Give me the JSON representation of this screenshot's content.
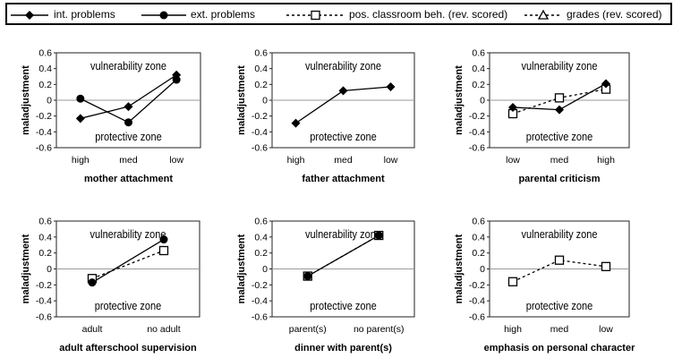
{
  "legend": {
    "items": [
      {
        "key": "int",
        "label": "int. problems",
        "marker": "diamond",
        "line": "solid"
      },
      {
        "key": "ext",
        "label": "ext. problems",
        "marker": "circle",
        "line": "solid"
      },
      {
        "key": "pcb",
        "label": "pos. classroom beh. (rev. scored)",
        "marker": "square",
        "line": "dashed"
      },
      {
        "key": "grades",
        "label": "grades (rev. scored)",
        "marker": "triangle",
        "line": "dashed"
      }
    ]
  },
  "chart_data": [
    {
      "type": "line",
      "xlabel": "mother attachment",
      "ylabel": "maladjustment",
      "ylim": [
        -0.6,
        0.6
      ],
      "yticks": [
        "0.6",
        "0.4",
        "0.2",
        "0",
        "-0.2",
        "-0.4",
        "-0.6"
      ],
      "categories": [
        "high",
        "med",
        "low"
      ],
      "upper_zone_label": "vulnerability zone",
      "lower_zone_label": "protective zone",
      "series": [
        {
          "name": "int. problems",
          "key": "int",
          "values": [
            -0.23,
            -0.08,
            0.32
          ]
        },
        {
          "name": "ext. problems",
          "key": "ext",
          "values": [
            0.02,
            -0.28,
            0.26
          ]
        }
      ]
    },
    {
      "type": "line",
      "xlabel": "father attachment",
      "ylabel": "maladjustment",
      "ylim": [
        -0.6,
        0.6
      ],
      "yticks": [
        "0.6",
        "0.4",
        "0.2",
        "0",
        "-0.2",
        "-0.4",
        "-0.6"
      ],
      "categories": [
        "high",
        "med",
        "low"
      ],
      "upper_zone_label": "vulnerability zone",
      "lower_zone_label": "protective zone",
      "series": [
        {
          "name": "int. problems",
          "key": "int",
          "values": [
            -0.29,
            0.12,
            0.17
          ]
        }
      ]
    },
    {
      "type": "line",
      "xlabel": "parental criticism",
      "ylabel": "maladjustment",
      "ylim": [
        -0.6,
        0.6
      ],
      "yticks": [
        "0.6",
        "0.4",
        "0.2",
        "0",
        "-0.2",
        "-0.4",
        "-0.6"
      ],
      "categories": [
        "low",
        "med",
        "high"
      ],
      "upper_zone_label": "vulnerability zone",
      "lower_zone_label": "protective zone",
      "series": [
        {
          "name": "int. problems",
          "key": "int",
          "values": [
            -0.09,
            -0.12,
            0.21
          ]
        },
        {
          "name": "pos. classroom beh. (rev. scored)",
          "key": "pcb",
          "values": [
            -0.17,
            0.03,
            0.14
          ]
        }
      ]
    },
    {
      "type": "line",
      "xlabel": "adult afterschool supervision",
      "ylabel": "maladjustment",
      "ylim": [
        -0.6,
        0.6
      ],
      "yticks": [
        "0.6",
        "0.4",
        "0.2",
        "0",
        "-0.2",
        "-0.4",
        "-0.6"
      ],
      "categories": [
        "adult",
        "no adult"
      ],
      "upper_zone_label": "vulnerability zone",
      "lower_zone_label": "protective zone",
      "series": [
        {
          "name": "ext. problems",
          "key": "ext",
          "values": [
            -0.17,
            0.37
          ]
        },
        {
          "name": "pos. classroom beh. (rev. scored)",
          "key": "pcb",
          "values": [
            -0.12,
            0.23
          ]
        }
      ]
    },
    {
      "type": "line",
      "xlabel": "dinner with parent(s)",
      "ylabel": "maladjustment",
      "ylim": [
        -0.6,
        0.6
      ],
      "yticks": [
        "0.6",
        "0.4",
        "0.2",
        "0",
        "-0.2",
        "-0.4",
        "-0.6"
      ],
      "categories": [
        "parent(s)",
        "no parent(s)"
      ],
      "upper_zone_label": "vulnerability zone",
      "lower_zone_label": "protective zone",
      "series": [
        {
          "name": "ext. problems",
          "key": "ext",
          "values": [
            -0.09,
            0.42
          ]
        },
        {
          "name": "pos. classroom beh. (rev. scored)",
          "key": "pcb",
          "values": [
            -0.09,
            0.42
          ]
        }
      ]
    },
    {
      "type": "line",
      "xlabel": "emphasis on personal character",
      "ylabel": "maladjustment",
      "ylim": [
        -0.6,
        0.6
      ],
      "yticks": [
        "0.6",
        "0.4",
        "0.2",
        "0",
        "-0.2",
        "-0.4",
        "-0.6"
      ],
      "categories": [
        "high",
        "med",
        "low"
      ],
      "upper_zone_label": "vulnerability zone",
      "lower_zone_label": "protective zone",
      "series": [
        {
          "name": "pos. classroom beh. (rev. scored)",
          "key": "pcb",
          "values": [
            -0.16,
            0.11,
            0.03
          ]
        }
      ]
    }
  ]
}
